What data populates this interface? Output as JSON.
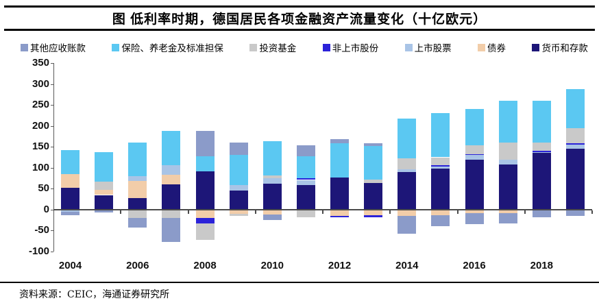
{
  "title": "图 低利率时期，德国居民各项金融资产流量变化（十亿欧元）",
  "source": "资料来源：CEIC，海通证券研究所",
  "axis_color": "#4a4a4a",
  "chart_data": {
    "type": "bar",
    "stacked": true,
    "title": "图 低利率时期，德国居民各项金融资产流量变化（十亿欧元）",
    "unit": "十亿欧元",
    "legend_position": "top",
    "grid": "off",
    "categories": [
      2004,
      2005,
      2006,
      2007,
      2008,
      2009,
      2010,
      2011,
      2012,
      2013,
      2014,
      2015,
      2016,
      2017,
      2018,
      2019
    ],
    "x_tick_labels": [
      "2004",
      "2006",
      "2008",
      "2010",
      "2012",
      "2014",
      "2016",
      "2018"
    ],
    "ylim": [
      -100,
      350
    ],
    "y_ticks": [
      350,
      300,
      250,
      200,
      150,
      100,
      50,
      0,
      -50,
      -100
    ],
    "series": [
      {
        "name": "其他应收账款",
        "color": "#8B9BC9",
        "values": [
          -8,
          -7,
          -23,
          -57,
          60,
          30,
          -13,
          25,
          10,
          6,
          -42,
          -27,
          -27,
          -25,
          -18,
          -15
        ]
      },
      {
        "name": "保险、养老金及标准担保",
        "color": "#5BC8F2",
        "values": [
          58,
          71,
          81,
          81,
          37,
          72,
          81,
          53,
          81,
          80,
          95,
          105,
          87,
          100,
          100,
          93
        ]
      },
      {
        "name": "投资基金",
        "color": "#C9C9C9",
        "values": [
          0,
          20,
          -20,
          -20,
          -39,
          -5,
          7,
          -18,
          0,
          9,
          25,
          19,
          20,
          40,
          20,
          37
        ]
      },
      {
        "name": "非上市股份",
        "color": "#2B22D9",
        "values": [
          0,
          0,
          0,
          0,
          -13,
          0,
          0,
          4,
          -4,
          -5,
          0,
          3,
          3,
          0,
          2,
          3
        ]
      },
      {
        "name": "上市股票",
        "color": "#A9C4E6",
        "values": [
          -5,
          0,
          12,
          23,
          0,
          13,
          13,
          13,
          0,
          0,
          7,
          5,
          10,
          12,
          3,
          10
        ]
      },
      {
        "name": "债券",
        "color": "#F2CDA9",
        "values": [
          33,
          12,
          41,
          23,
          -20,
          -10,
          -12,
          0,
          -15,
          -13,
          -15,
          -13,
          -8,
          -8,
          0,
          0
        ]
      },
      {
        "name": "货币和存款",
        "color": "#1D1678",
        "values": [
          52,
          35,
          27,
          61,
          91,
          45,
          62,
          58,
          77,
          63,
          90,
          98,
          120,
          108,
          135,
          145
        ]
      }
    ],
    "stack_render_order": "reverse-of-legend (货币和存款 at baseline, 其他应收账款 outermost)"
  }
}
